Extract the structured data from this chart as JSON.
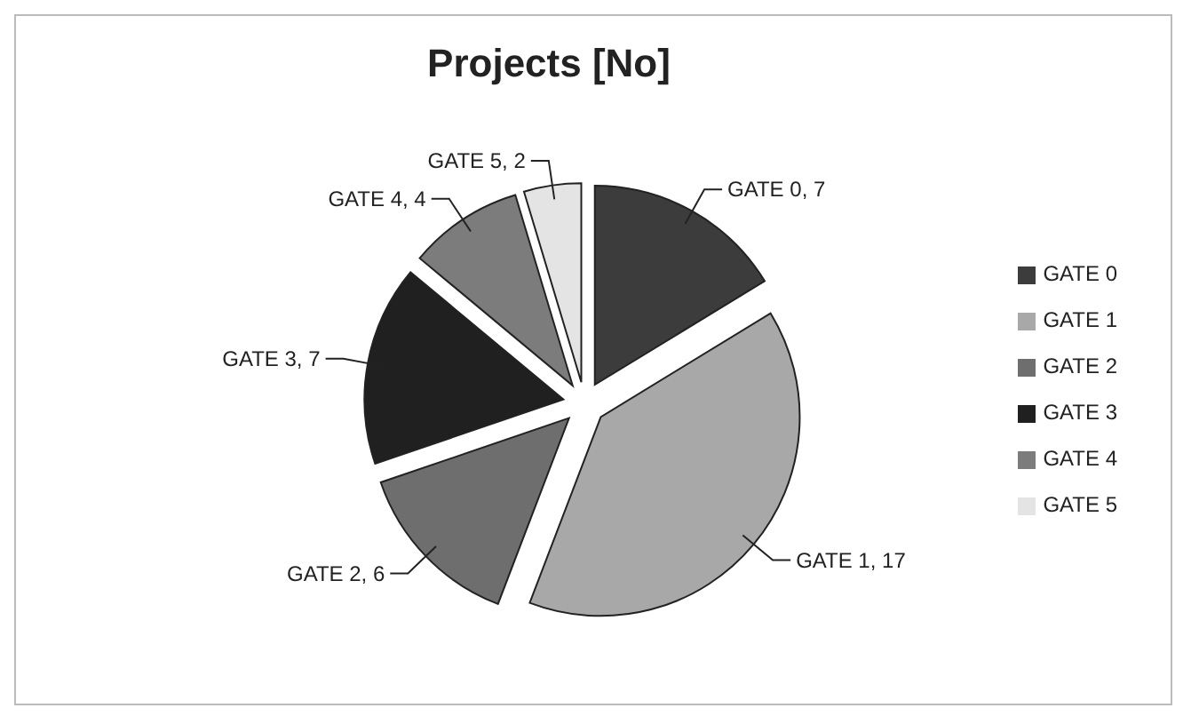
{
  "chart_data": {
    "type": "pie",
    "title": "Projects [No]",
    "categories": [
      "GATE 0",
      "GATE 1",
      "GATE 2",
      "GATE 3",
      "GATE 4",
      "GATE 5"
    ],
    "values": [
      7,
      17,
      6,
      7,
      4,
      2
    ],
    "colors": [
      "#3c3c3c",
      "#a8a8a8",
      "#6e6e6e",
      "#202020",
      "#7c7c7c",
      "#e4e4e4"
    ],
    "value_labels": [
      "GATE 0, 7",
      "GATE 1, 17",
      "GATE 2, 6",
      "GATE 3, 7",
      "GATE 4, 4",
      "GATE 5, 2"
    ],
    "legend": "right"
  }
}
